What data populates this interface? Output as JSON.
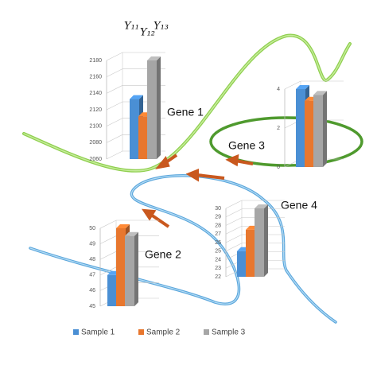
{
  "chart_data": [
    {
      "type": "bar3d",
      "title": "Gene 1",
      "ylim": [
        2060,
        2180
      ],
      "yticks": [
        2060,
        2080,
        2100,
        2120,
        2140,
        2160,
        2180
      ],
      "series": [
        {
          "name": "Sample 1",
          "color": "#4a8fd4",
          "values": [
            2133
          ]
        },
        {
          "name": "Sample 2",
          "color": "#e8772e",
          "values": [
            2112
          ]
        },
        {
          "name": "Sample 3",
          "color": "#a6a6a6",
          "values": [
            2180
          ]
        }
      ]
    },
    {
      "type": "bar3d",
      "title": "Gene 3",
      "ylim": [
        0,
        4
      ],
      "yticks": [
        0,
        2,
        4
      ],
      "series": [
        {
          "name": "Sample 1",
          "color": "#4a8fd4",
          "values": [
            4
          ]
        },
        {
          "name": "Sample 2",
          "color": "#e8772e",
          "values": [
            3.4
          ]
        },
        {
          "name": "Sample 3",
          "color": "#a6a6a6",
          "values": [
            3.7
          ]
        }
      ]
    },
    {
      "type": "bar3d",
      "title": "Gene 4",
      "ylim": [
        22,
        30
      ],
      "yticks": [
        22,
        23,
        24,
        25,
        26,
        27,
        28,
        29,
        30
      ],
      "series": [
        {
          "name": "Sample 1",
          "color": "#4a8fd4",
          "values": [
            25
          ]
        },
        {
          "name": "Sample 2",
          "color": "#e8772e",
          "values": [
            27.5
          ]
        },
        {
          "name": "Sample 3",
          "color": "#a6a6a6",
          "values": [
            30
          ]
        }
      ]
    },
    {
      "type": "bar3d",
      "title": "Gene 2",
      "ylim": [
        45,
        50
      ],
      "yticks": [
        45,
        46,
        47,
        48,
        49,
        50
      ],
      "series": [
        {
          "name": "Sample 1",
          "color": "#4a8fd4",
          "values": [
            47
          ]
        },
        {
          "name": "Sample 2",
          "color": "#e8772e",
          "values": [
            50
          ]
        },
        {
          "name": "Sample 3",
          "color": "#a6a6a6",
          "values": [
            49.5
          ]
        }
      ]
    }
  ],
  "column_labels": [
    "Y₁₁",
    "Y₁₂",
    "Y₁₃"
  ]
}
